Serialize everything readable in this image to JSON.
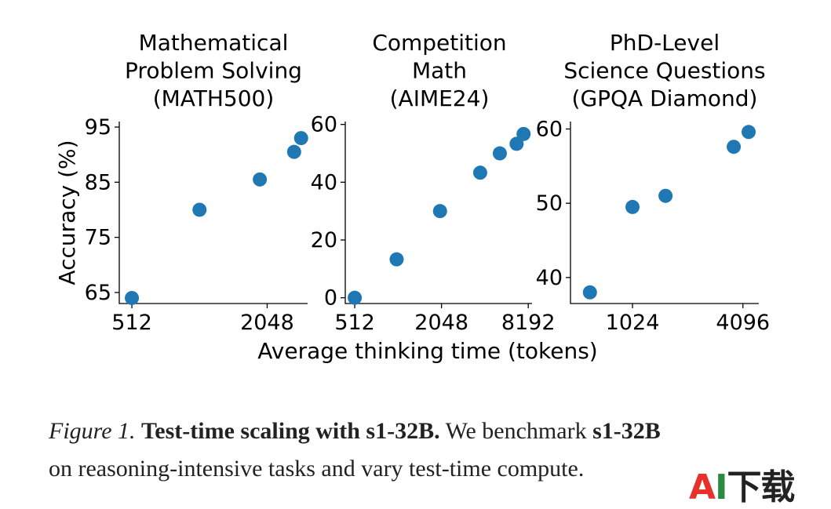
{
  "chart_data": [
    {
      "type": "scatter",
      "title_lines": [
        "Mathematical",
        "Problem Solving",
        "(MATH500)"
      ],
      "ylabel": "Accuracy (%)",
      "x_scale": "log2",
      "xlim": [
        450,
        3100
      ],
      "ylim": [
        63,
        96
      ],
      "xticks": [
        512,
        2048
      ],
      "yticks": [
        65,
        75,
        85,
        95
      ],
      "points": [
        {
          "x": 512,
          "y": 64.0
        },
        {
          "x": 1024,
          "y": 80.0
        },
        {
          "x": 1900,
          "y": 85.5
        },
        {
          "x": 2700,
          "y": 90.5
        },
        {
          "x": 2900,
          "y": 93.0
        }
      ],
      "color": "#1f77b4"
    },
    {
      "type": "scatter",
      "title_lines": [
        "Competition",
        "Math",
        "(AIME24)"
      ],
      "x_scale": "log2",
      "xlim": [
        440,
        8700
      ],
      "ylim": [
        -2,
        61
      ],
      "xticks": [
        512,
        2048,
        8192
      ],
      "yticks": [
        0,
        20,
        40,
        60
      ],
      "points": [
        {
          "x": 512,
          "y": 0.0
        },
        {
          "x": 1000,
          "y": 13.3
        },
        {
          "x": 2000,
          "y": 30.0
        },
        {
          "x": 3800,
          "y": 43.3
        },
        {
          "x": 5200,
          "y": 50.0
        },
        {
          "x": 6800,
          "y": 53.3
        },
        {
          "x": 7600,
          "y": 56.7
        }
      ],
      "color": "#1f77b4"
    },
    {
      "type": "scatter",
      "title_lines": [
        "PhD-Level",
        "Science Questions",
        "(GPQA Diamond)"
      ],
      "x_scale": "log2",
      "xlim": [
        470,
        5000
      ],
      "ylim": [
        36.5,
        61
      ],
      "xticks": [
        1024,
        4096
      ],
      "yticks": [
        40,
        50,
        60
      ],
      "points": [
        {
          "x": 600,
          "y": 38.0
        },
        {
          "x": 1024,
          "y": 49.5
        },
        {
          "x": 1550,
          "y": 51.0
        },
        {
          "x": 3650,
          "y": 57.6
        },
        {
          "x": 4400,
          "y": 59.6
        }
      ],
      "color": "#1f77b4"
    }
  ],
  "shared_xlabel": "Average thinking time (tokens)",
  "caption": {
    "fig_label": "Figure 1.",
    "bold_title": "Test-time scaling with s1-32B.",
    "text1": " We benchmark ",
    "model": "s1-32B",
    "line2": "on reasoning-intensive tasks and vary test-time compute."
  },
  "watermark": {
    "part1": "A",
    "part2": "I",
    "part3": "下载"
  }
}
